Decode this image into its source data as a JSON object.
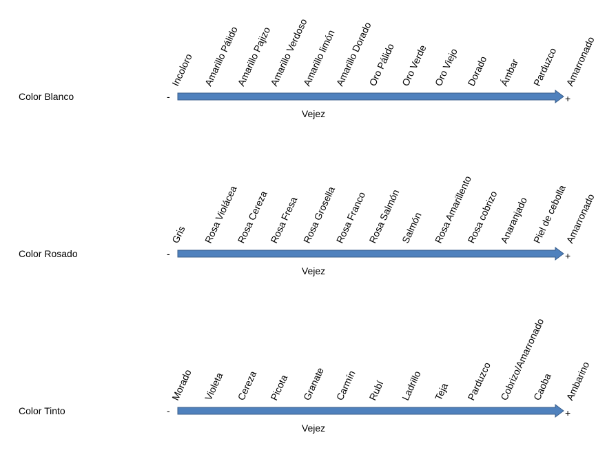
{
  "rows": [
    {
      "label": "Color Blanco",
      "minus": "-",
      "plus": "+",
      "axis_label": "Vejez",
      "stages": [
        "Incoloro",
        "Amarillo Pálido",
        "Amarillo Pajizo",
        "Amarillo Verdoso",
        "Amarillo limón",
        "Amarillo Dorado",
        "Oro Pálido",
        "Oro Verde",
        "Oro Viejo",
        "Dorado",
        "Ámbar",
        "Parduzco",
        "Amarronado"
      ]
    },
    {
      "label": "Color Rosado",
      "minus": "-",
      "plus": "+",
      "axis_label": "Vejez",
      "stages": [
        "Gris",
        "Rosa Violácea",
        "Rosa Cereza",
        "Rosa Fresa",
        "Rosa Grosella",
        "Rosa Franco",
        "Rosa Salmón",
        "Salmón",
        "Rosa Amarillento",
        "Rosa cobrizo",
        "Anaranjado",
        "Piel de cebolla",
        "Amarronado"
      ]
    },
    {
      "label": "Color Tinto",
      "minus": "-",
      "plus": "+",
      "axis_label": "Vejez",
      "stages": [
        "Morado",
        "Violeta",
        "Cereza",
        "Picota",
        "Granate",
        "Carmín",
        "Rubí",
        "Ladrillo",
        "Teja",
        "Parduzco",
        "Cobrizo/Amarronado",
        "Caoba",
        "Ambarino"
      ]
    }
  ]
}
